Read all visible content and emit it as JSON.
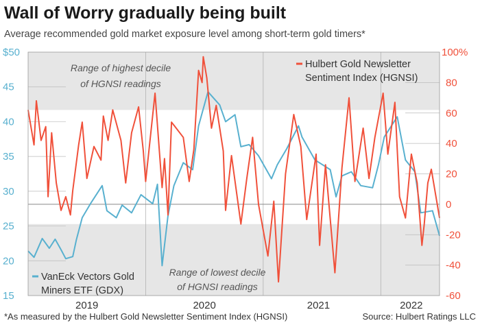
{
  "chart_data": {
    "type": "line",
    "title": "Wall of Worry gradually being built",
    "subtitle": "Average recommended gold market exposure level among short-term gold timers*",
    "xlim": [
      2019.0,
      2022.5
    ],
    "x_tick_labels": [
      {
        "label": "2019",
        "x": 2019.5
      },
      {
        "label": "2020",
        "x": 2020.5
      },
      {
        "label": "2021",
        "x": 2021.47
      },
      {
        "label": "2022",
        "x": 2022.26
      }
    ],
    "year_dividers": [
      2020.0,
      2021.0,
      2022.0
    ],
    "left_axis": {
      "ylim": [
        15,
        50
      ],
      "ticks": [
        "$50",
        "45",
        "40",
        "35",
        "30",
        "25",
        "20",
        "15"
      ],
      "tick_values": [
        50,
        45,
        40,
        35,
        30,
        25,
        20,
        15
      ]
    },
    "right_axis": {
      "ylim": [
        -60,
        100
      ],
      "ticks": [
        "100%",
        "80",
        "60",
        "40",
        "20",
        "0",
        "-20",
        "-40",
        "-60"
      ],
      "tick_values": [
        100,
        80,
        60,
        40,
        20,
        0,
        -20,
        -40,
        -60
      ]
    },
    "bands": [
      {
        "label": "Range of highest decile of HGNSI readings",
        "from": 62,
        "to": 100,
        "lines": [
          "Range of highest decile",
          "of HGNSI readings"
        ]
      },
      {
        "label": "Range of lowest decile of HGNSI readings",
        "from": -60,
        "to": -13,
        "lines": [
          "Range of lowest decile",
          "of HGNSI readings"
        ]
      }
    ],
    "series": [
      {
        "name": "VanEck Vectors Gold Miners ETF (GDX)",
        "legend_lines": [
          "VanEck Vectors Gold",
          "Miners ETF (GDX)"
        ],
        "axis": "left",
        "color": "#58b0cf",
        "x": [
          2019.0,
          2019.05,
          2019.12,
          2019.18,
          2019.23,
          2019.28,
          2019.32,
          2019.38,
          2019.41,
          2019.46,
          2019.53,
          2019.63,
          2019.67,
          2019.75,
          2019.8,
          2019.88,
          2019.96,
          2020.06,
          2020.1,
          2020.14,
          2020.19,
          2020.24,
          2020.32,
          2020.4,
          2020.45,
          2020.53,
          2020.63,
          2020.68,
          2020.76,
          2020.81,
          2020.88,
          2020.96,
          2021.07,
          2021.12,
          2021.2,
          2021.3,
          2021.33,
          2021.44,
          2021.57,
          2021.62,
          2021.67,
          2021.75,
          2021.83,
          2021.93,
          2021.98,
          2022.03,
          2022.14,
          2022.21,
          2022.29,
          2022.34,
          2022.44,
          2022.5
        ],
        "values": [
          21.4,
          20.5,
          23.2,
          21.8,
          23.1,
          21.6,
          20.3,
          20.6,
          23,
          26.2,
          28.2,
          30.8,
          27.2,
          26.2,
          28,
          26.9,
          29.5,
          28.2,
          31,
          19.3,
          26.5,
          30.8,
          34.1,
          33.1,
          39.4,
          44.3,
          42.4,
          40,
          41,
          36.4,
          36.7,
          35.1,
          31.8,
          33.8,
          36.1,
          39.4,
          37.8,
          34.5,
          33.1,
          29.2,
          32.2,
          32.8,
          30.8,
          30.5,
          33.8,
          37.8,
          40.7,
          34.5,
          32.8,
          26.9,
          27.2,
          23.6
        ]
      },
      {
        "name": "Hulbert Gold Newsletter Sentiment Index (HGNSI)",
        "legend_lines": [
          "Hulbert Gold Newsletter",
          "Sentiment Index (HGNSI)"
        ],
        "axis": "right",
        "color": "#f0503a",
        "x": [
          2019.0,
          2019.05,
          2019.07,
          2019.11,
          2019.15,
          2019.17,
          2019.2,
          2019.24,
          2019.28,
          2019.32,
          2019.36,
          2019.38,
          2019.43,
          2019.46,
          2019.5,
          2019.56,
          2019.62,
          2019.64,
          2019.68,
          2019.72,
          2019.79,
          2019.83,
          2019.88,
          2019.94,
          2019.98,
          2020.0,
          2020.08,
          2020.14,
          2020.16,
          2020.19,
          2020.22,
          2020.25,
          2020.32,
          2020.37,
          2020.41,
          2020.45,
          2020.48,
          2020.49,
          2020.52,
          2020.56,
          2020.6,
          2020.66,
          2020.68,
          2020.73,
          2020.81,
          2020.86,
          2020.91,
          2020.96,
          2021.04,
          2021.09,
          2021.13,
          2021.19,
          2021.26,
          2021.32,
          2021.37,
          2021.45,
          2021.48,
          2021.53,
          2021.61,
          2021.67,
          2021.73,
          2021.78,
          2021.85,
          2021.9,
          2021.95,
          2022.02,
          2022.06,
          2022.12,
          2022.16,
          2022.21,
          2022.26,
          2022.31,
          2022.35,
          2022.37,
          2022.4,
          2022.43,
          2022.5
        ],
        "values": [
          62,
          39,
          68,
          42,
          51,
          5,
          47,
          14,
          -4,
          5,
          -7,
          9,
          39,
          54,
          17,
          38,
          29,
          58,
          42,
          62,
          42,
          14,
          47,
          64,
          35,
          15,
          73,
          11,
          30,
          -7,
          54,
          51,
          44,
          15,
          36,
          88,
          80,
          97,
          83,
          50,
          65,
          35,
          -4,
          32,
          -13,
          17,
          44,
          0,
          -34,
          2,
          -51,
          20,
          59,
          38,
          -10,
          33,
          -27,
          26,
          -45,
          24,
          70,
          15,
          50,
          17,
          44,
          73,
          33,
          67,
          5,
          -9,
          33,
          14,
          -27,
          -13,
          14,
          23,
          -9
        ]
      }
    ]
  },
  "footer": {
    "note": "*As measured by the Hulbert Gold Newsletter Sentiment Index (HGNSI)",
    "source": "Source: Hulbert Ratings LLC"
  }
}
